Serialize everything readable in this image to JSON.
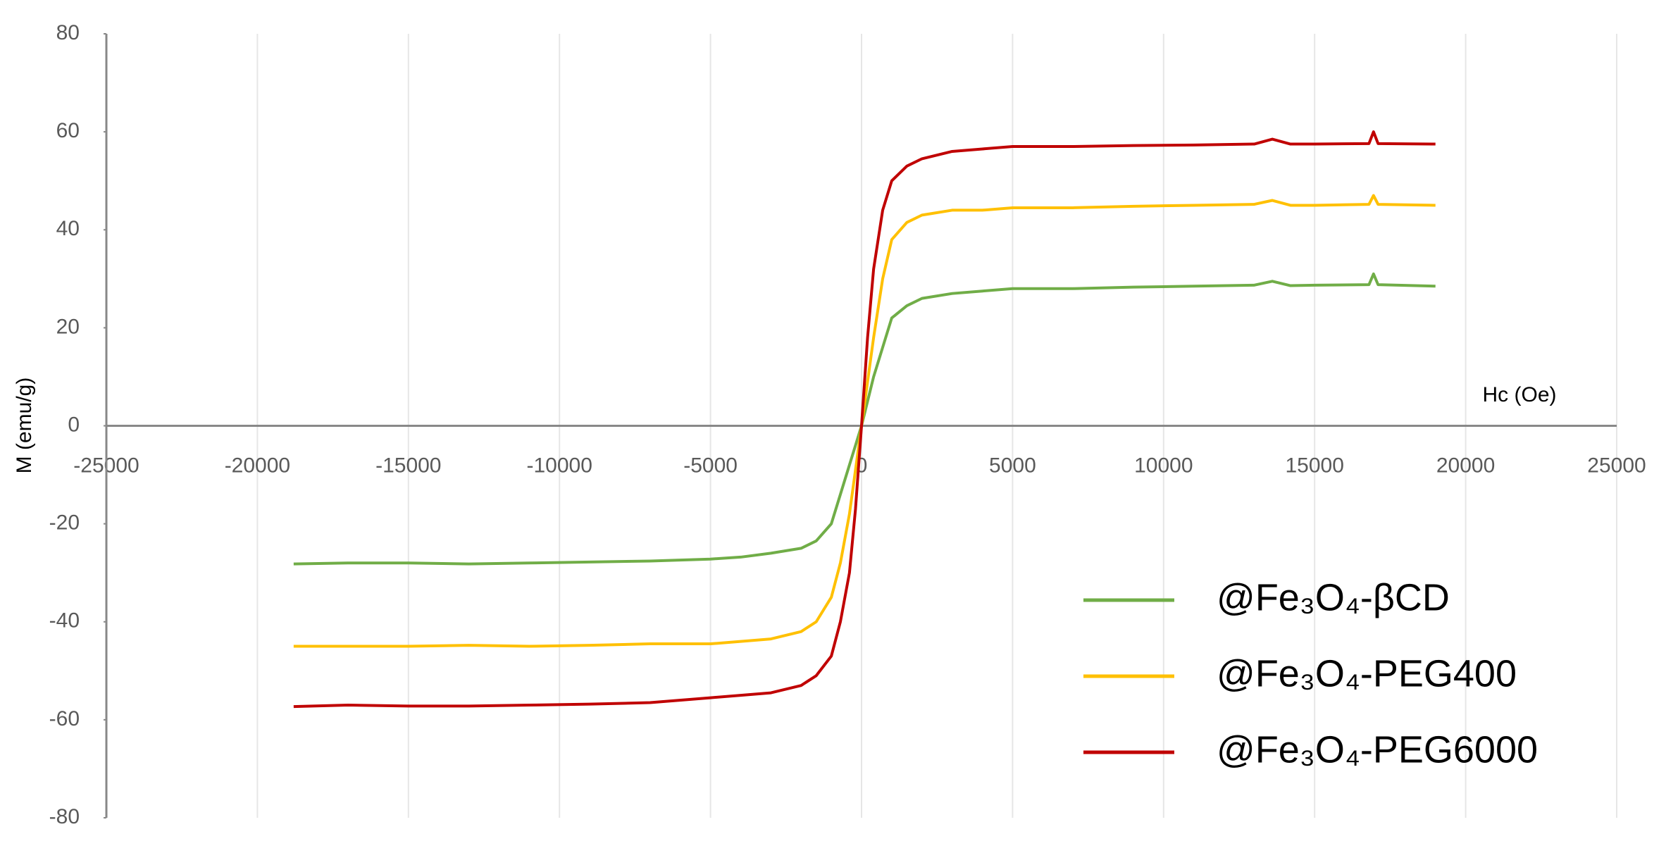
{
  "chart_data": {
    "type": "line",
    "x_label": "Hc (Oe)",
    "y_label": "M (emu/g)",
    "x": [
      -18800,
      -17000,
      -15000,
      -13000,
      -11000,
      -9000,
      -7000,
      -5000,
      -4000,
      -3000,
      -2000,
      -1500,
      -1000,
      -700,
      -400,
      -200,
      0,
      200,
      400,
      700,
      1000,
      1500,
      2000,
      3000,
      4000,
      5000,
      7000,
      9000,
      11000,
      13000,
      13600,
      14200,
      15000,
      16800,
      16950,
      17100,
      19000
    ],
    "series": [
      {
        "name": "@Fe₃O₄-βCD",
        "color": "#70ad47",
        "values": [
          -28.2,
          -28,
          -28,
          -28.2,
          -28,
          -27.8,
          -27.6,
          -27.2,
          -26.8,
          -26,
          -25,
          -23.5,
          -20,
          -14,
          -8,
          -4,
          0,
          5,
          10,
          16,
          22,
          24.5,
          26,
          27,
          27.5,
          28,
          28,
          28.3,
          28.5,
          28.7,
          29.5,
          28.6,
          28.7,
          28.8,
          31,
          28.8,
          28.5
        ]
      },
      {
        "name": "@Fe₃O₄-PEG400",
        "color": "#ffc000",
        "values": [
          -45,
          -45,
          -45,
          -44.8,
          -45,
          -44.8,
          -44.5,
          -44.5,
          -44,
          -43.5,
          -42,
          -40,
          -35,
          -28,
          -18,
          -9,
          0,
          9,
          18,
          30,
          38,
          41.5,
          43,
          44,
          44,
          44.5,
          44.5,
          44.8,
          45,
          45.2,
          46,
          45,
          45,
          45.2,
          47,
          45.2,
          45
        ]
      },
      {
        "name": "@Fe₃O₄-PEG6000",
        "color": "#c00000",
        "values": [
          -57.3,
          -57,
          -57.2,
          -57.2,
          -57,
          -56.8,
          -56.5,
          -55.5,
          -55,
          -54.5,
          -53,
          -51,
          -47,
          -40,
          -30,
          -17,
          0,
          18,
          32,
          44,
          50,
          53,
          54.5,
          56,
          56.5,
          57,
          57,
          57.2,
          57.3,
          57.5,
          58.5,
          57.5,
          57.5,
          57.6,
          60,
          57.6,
          57.5
        ]
      }
    ],
    "xlim": [
      -25000,
      25000
    ],
    "ylim": [
      -80,
      80
    ],
    "xticks": [
      -25000,
      -20000,
      -15000,
      -10000,
      -5000,
      0,
      5000,
      10000,
      15000,
      20000,
      25000
    ],
    "yticks": [
      -80,
      -60,
      -40,
      -20,
      0,
      20,
      40,
      60,
      80
    ],
    "xgrid": true,
    "legend": "lower right"
  }
}
